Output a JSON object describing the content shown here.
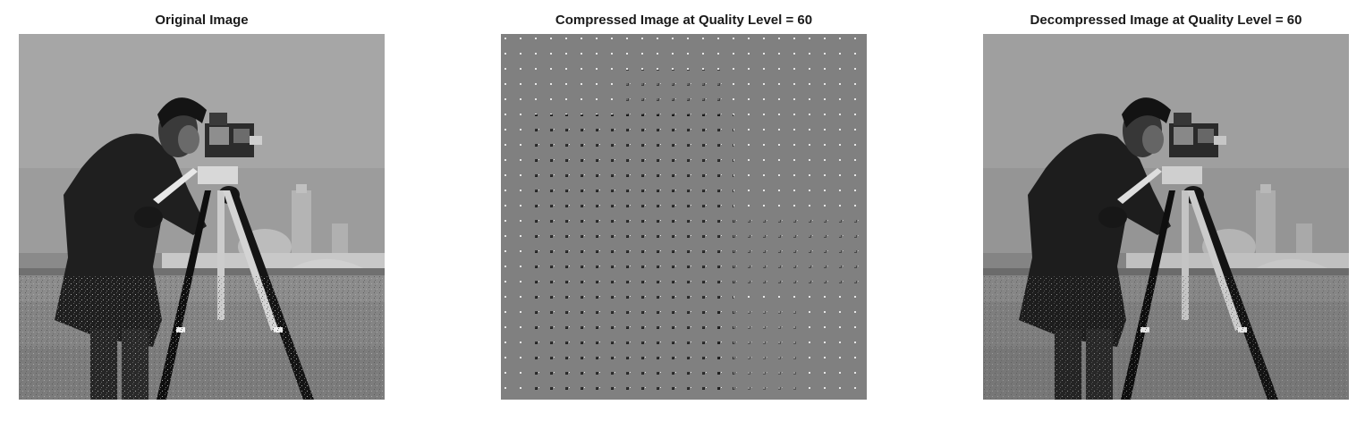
{
  "panels": {
    "original": {
      "title": "Original Image",
      "image": "cameraman-grayscale-photo"
    },
    "compressed": {
      "title": "Compressed Image at Quality Level = 60",
      "image": "dct-coefficient-map"
    },
    "decompressed": {
      "title": "Decompressed Image at Quality Level = 60",
      "image": "cameraman-grayscale-photo-reconstructed"
    }
  },
  "colors": {
    "background": "#ffffff",
    "compressed_gray": "#808080"
  }
}
